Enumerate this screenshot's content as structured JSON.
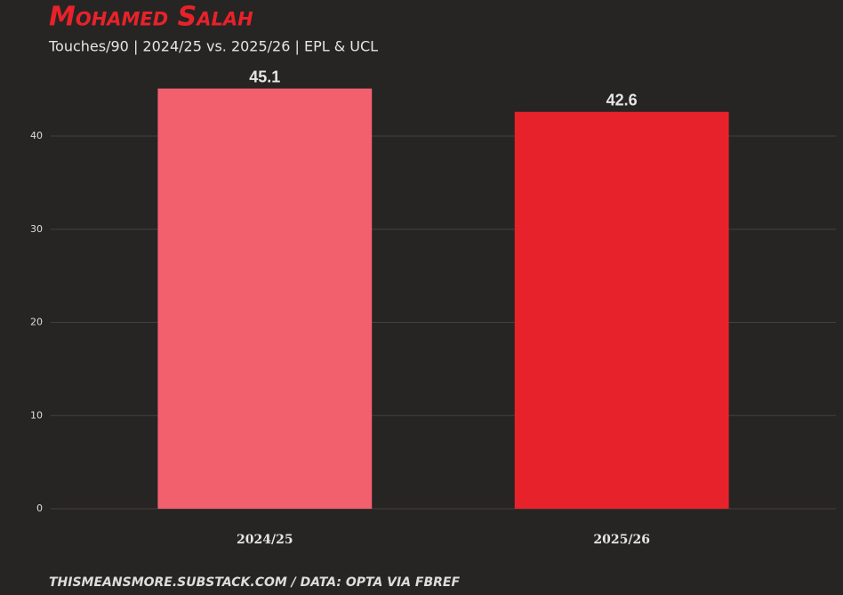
{
  "chart_data": {
    "type": "bar",
    "title": "Mohamed Salah",
    "subtitle": "Touches/90 | 2024/25 vs. 2025/26 | EPL & UCL",
    "caption": "thismeansmore.substack.com / Data: Opta via FBref",
    "categories": [
      "2024/25",
      "2025/26"
    ],
    "values": [
      45.1,
      42.6
    ],
    "colors": [
      "#f2606e",
      "#e8222a"
    ],
    "ylim": [
      0,
      47
    ],
    "yticks": [
      0,
      10,
      20,
      30,
      40
    ],
    "grid": true
  }
}
